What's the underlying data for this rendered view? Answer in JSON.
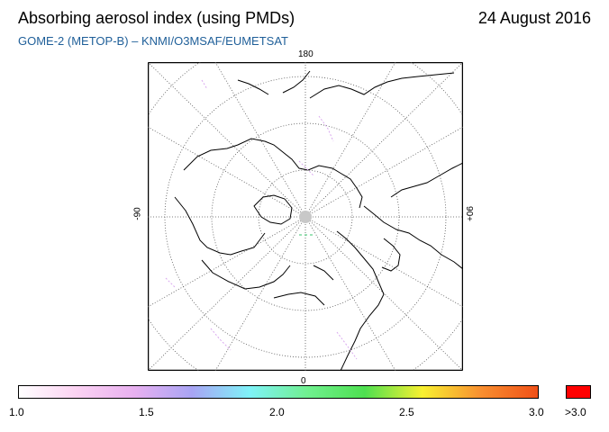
{
  "header": {
    "title": "Absorbing aerosol index (using PMDs)",
    "date": "24 August 2016",
    "subtitle": "GOME-2 (METOP-B)  –   KNMI/O3MSAF/EUMETSAT"
  },
  "map": {
    "projection": "north polar stereographic",
    "graticule": "dotted",
    "longitude_labels": {
      "top": "180",
      "bottom": "0",
      "left": "-90",
      "right": "90+"
    }
  },
  "colorbar": {
    "tick_labels": [
      "1.0",
      "1.5",
      "2.0",
      "2.5",
      "3.0"
    ],
    "overflow_label": ">3.0",
    "overflow_color": "#ff0000",
    "gradient_colors": [
      "#ffffff",
      "#fbd2f2",
      "#e8b0f0",
      "#a8a4f4",
      "#7ff2f8",
      "#70f090",
      "#4ee050",
      "#f8f030",
      "#f89030",
      "#f05018"
    ]
  }
}
